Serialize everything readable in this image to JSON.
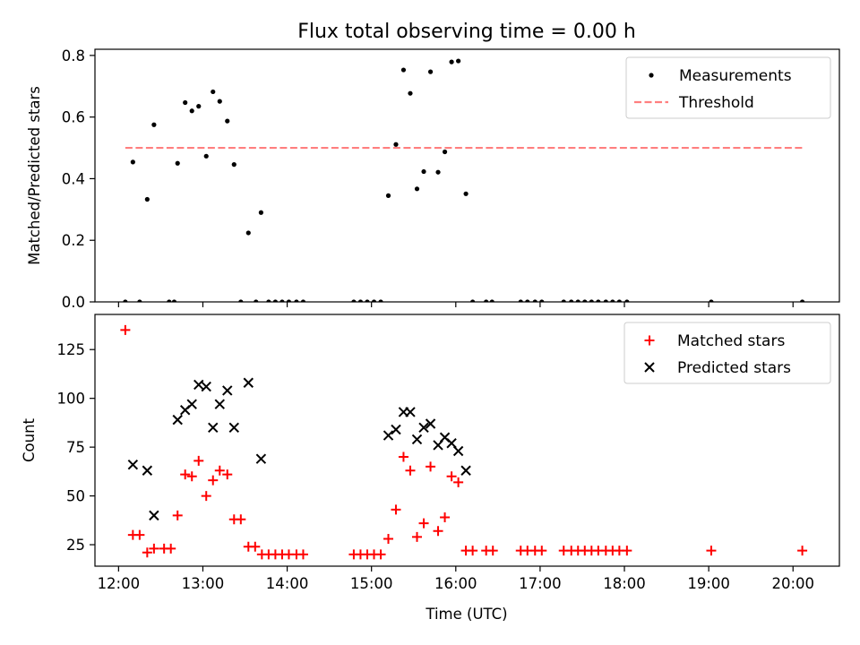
{
  "chart_data": {
    "title": "Flux total observing time = 0.00 h",
    "xlabel": "Time (UTC)",
    "x_unit": "hour (UTC)",
    "xlim": [
      11.72,
      20.55
    ],
    "x_ticks": [
      {
        "value": 12,
        "label": "12:00"
      },
      {
        "value": 13,
        "label": "13:00"
      },
      {
        "value": 14,
        "label": "14:00"
      },
      {
        "value": 15,
        "label": "15:00"
      },
      {
        "value": 16,
        "label": "16:00"
      },
      {
        "value": 17,
        "label": "17:00"
      },
      {
        "value": 18,
        "label": "18:00"
      },
      {
        "value": 19,
        "label": "19:00"
      },
      {
        "value": 20,
        "label": "20:00"
      }
    ],
    "panels": [
      {
        "type": "scatter",
        "ylabel": "Matched/Predicted stars",
        "ylim": [
          0,
          0.82
        ],
        "y_ticks": [
          {
            "value": 0,
            "label": "0.0"
          },
          {
            "value": 0.2,
            "label": "0.2"
          },
          {
            "value": 0.4,
            "label": "0.4"
          },
          {
            "value": 0.6,
            "label": "0.6"
          },
          {
            "value": 0.8,
            "label": "0.8"
          }
        ],
        "legend": {
          "position": "top-right",
          "entries": [
            "Measurements",
            "Threshold"
          ]
        },
        "series": [
          {
            "name": "Measurements",
            "marker": "dot",
            "color": "#000000",
            "points": [
              [
                12.08,
                0
              ],
              [
                12.25,
                0
              ],
              [
                12.6,
                0
              ],
              [
                12.66,
                0
              ],
              [
                13.45,
                0
              ],
              [
                13.63,
                0
              ],
              [
                13.78,
                0
              ],
              [
                13.86,
                0
              ],
              [
                13.94,
                0
              ],
              [
                14.02,
                0
              ],
              [
                14.11,
                0
              ],
              [
                14.19,
                0
              ],
              [
                14.79,
                0
              ],
              [
                14.87,
                0
              ],
              [
                14.95,
                0
              ],
              [
                15.03,
                0
              ],
              [
                15.11,
                0
              ],
              [
                16.2,
                0
              ],
              [
                16.36,
                0
              ],
              [
                16.43,
                0
              ],
              [
                16.77,
                0
              ],
              [
                16.85,
                0
              ],
              [
                16.94,
                0
              ],
              [
                17.02,
                0
              ],
              [
                17.28,
                0
              ],
              [
                17.37,
                0
              ],
              [
                17.45,
                0
              ],
              [
                17.53,
                0
              ],
              [
                17.61,
                0
              ],
              [
                17.69,
                0
              ],
              [
                17.78,
                0
              ],
              [
                17.86,
                0
              ],
              [
                17.94,
                0
              ],
              [
                18.03,
                0
              ],
              [
                19.03,
                0
              ],
              [
                20.11,
                0
              ],
              [
                12.17,
                0.454
              ],
              [
                12.34,
                0.333
              ],
              [
                12.42,
                0.575
              ],
              [
                12.7,
                0.45
              ],
              [
                12.79,
                0.647
              ],
              [
                12.87,
                0.62
              ],
              [
                12.95,
                0.635
              ],
              [
                13.04,
                0.473
              ],
              [
                13.12,
                0.682
              ],
              [
                13.2,
                0.651
              ],
              [
                13.29,
                0.587
              ],
              [
                13.37,
                0.446
              ],
              [
                13.54,
                0.224
              ],
              [
                13.69,
                0.29
              ],
              [
                15.2,
                0.345
              ],
              [
                15.29,
                0.511
              ],
              [
                15.38,
                0.753
              ],
              [
                15.46,
                0.677
              ],
              [
                15.54,
                0.367
              ],
              [
                15.62,
                0.423
              ],
              [
                15.7,
                0.747
              ],
              [
                15.79,
                0.421
              ],
              [
                15.87,
                0.487
              ],
              [
                15.95,
                0.779
              ],
              [
                16.03,
                0.782
              ],
              [
                16.12,
                0.351
              ]
            ]
          },
          {
            "name": "Threshold",
            "style": "dashed",
            "color": "#ff7f7f",
            "value": 0.5,
            "x_range": [
              12.08,
              20.11
            ]
          }
        ]
      },
      {
        "type": "scatter",
        "ylabel": "Count",
        "ylim": [
          14,
          143
        ],
        "y_ticks": [
          {
            "value": 25,
            "label": "25"
          },
          {
            "value": 50,
            "label": "50"
          },
          {
            "value": 75,
            "label": "75"
          },
          {
            "value": 100,
            "label": "100"
          },
          {
            "value": 125,
            "label": "125"
          }
        ],
        "legend": {
          "position": "top-right",
          "entries": [
            "Matched stars",
            "Predicted stars"
          ]
        },
        "series": [
          {
            "name": "Matched stars",
            "marker": "plus",
            "color": "#ff0000",
            "points": [
              [
                12.08,
                135
              ],
              [
                12.17,
                30
              ],
              [
                12.25,
                30
              ],
              [
                12.34,
                21
              ],
              [
                12.42,
                23
              ],
              [
                12.54,
                23
              ],
              [
                12.62,
                23
              ],
              [
                12.7,
                40
              ],
              [
                12.79,
                61
              ],
              [
                12.87,
                60
              ],
              [
                12.95,
                68
              ],
              [
                13.04,
                50
              ],
              [
                13.12,
                58
              ],
              [
                13.2,
                63
              ],
              [
                13.29,
                61
              ],
              [
                13.37,
                38
              ],
              [
                13.45,
                38
              ],
              [
                13.54,
                24
              ],
              [
                13.62,
                24
              ],
              [
                13.7,
                20
              ],
              [
                13.78,
                20
              ],
              [
                13.86,
                20
              ],
              [
                13.94,
                20
              ],
              [
                14.02,
                20
              ],
              [
                14.11,
                20
              ],
              [
                14.19,
                20
              ],
              [
                14.79,
                20
              ],
              [
                14.87,
                20
              ],
              [
                14.95,
                20
              ],
              [
                15.03,
                20
              ],
              [
                15.11,
                20
              ],
              [
                15.2,
                28
              ],
              [
                15.29,
                43
              ],
              [
                15.38,
                70
              ],
              [
                15.46,
                63
              ],
              [
                15.54,
                29
              ],
              [
                15.62,
                36
              ],
              [
                15.7,
                65
              ],
              [
                15.79,
                32
              ],
              [
                15.87,
                39
              ],
              [
                15.95,
                60
              ],
              [
                16.03,
                57
              ],
              [
                16.12,
                22
              ],
              [
                16.2,
                22
              ],
              [
                16.36,
                22
              ],
              [
                16.44,
                22
              ],
              [
                16.77,
                22
              ],
              [
                16.85,
                22
              ],
              [
                16.94,
                22
              ],
              [
                17.02,
                22
              ],
              [
                17.28,
                22
              ],
              [
                17.37,
                22
              ],
              [
                17.45,
                22
              ],
              [
                17.53,
                22
              ],
              [
                17.61,
                22
              ],
              [
                17.69,
                22
              ],
              [
                17.78,
                22
              ],
              [
                17.86,
                22
              ],
              [
                17.94,
                22
              ],
              [
                18.03,
                22
              ],
              [
                19.03,
                22
              ],
              [
                20.11,
                22
              ]
            ]
          },
          {
            "name": "Predicted stars",
            "marker": "x",
            "color": "#000000",
            "points": [
              [
                12.17,
                66
              ],
              [
                12.34,
                63
              ],
              [
                12.42,
                40
              ],
              [
                12.7,
                89
              ],
              [
                12.79,
                94
              ],
              [
                12.87,
                97
              ],
              [
                12.95,
                107
              ],
              [
                13.04,
                106
              ],
              [
                13.12,
                85
              ],
              [
                13.2,
                97
              ],
              [
                13.29,
                104
              ],
              [
                13.37,
                85
              ],
              [
                13.54,
                108
              ],
              [
                13.69,
                69
              ],
              [
                15.2,
                81
              ],
              [
                15.29,
                84
              ],
              [
                15.38,
                93
              ],
              [
                15.46,
                93
              ],
              [
                15.54,
                79
              ],
              [
                15.62,
                85
              ],
              [
                15.7,
                87
              ],
              [
                15.79,
                76
              ],
              [
                15.87,
                80
              ],
              [
                15.95,
                77
              ],
              [
                16.03,
                73
              ],
              [
                16.12,
                63
              ]
            ]
          }
        ]
      }
    ]
  }
}
